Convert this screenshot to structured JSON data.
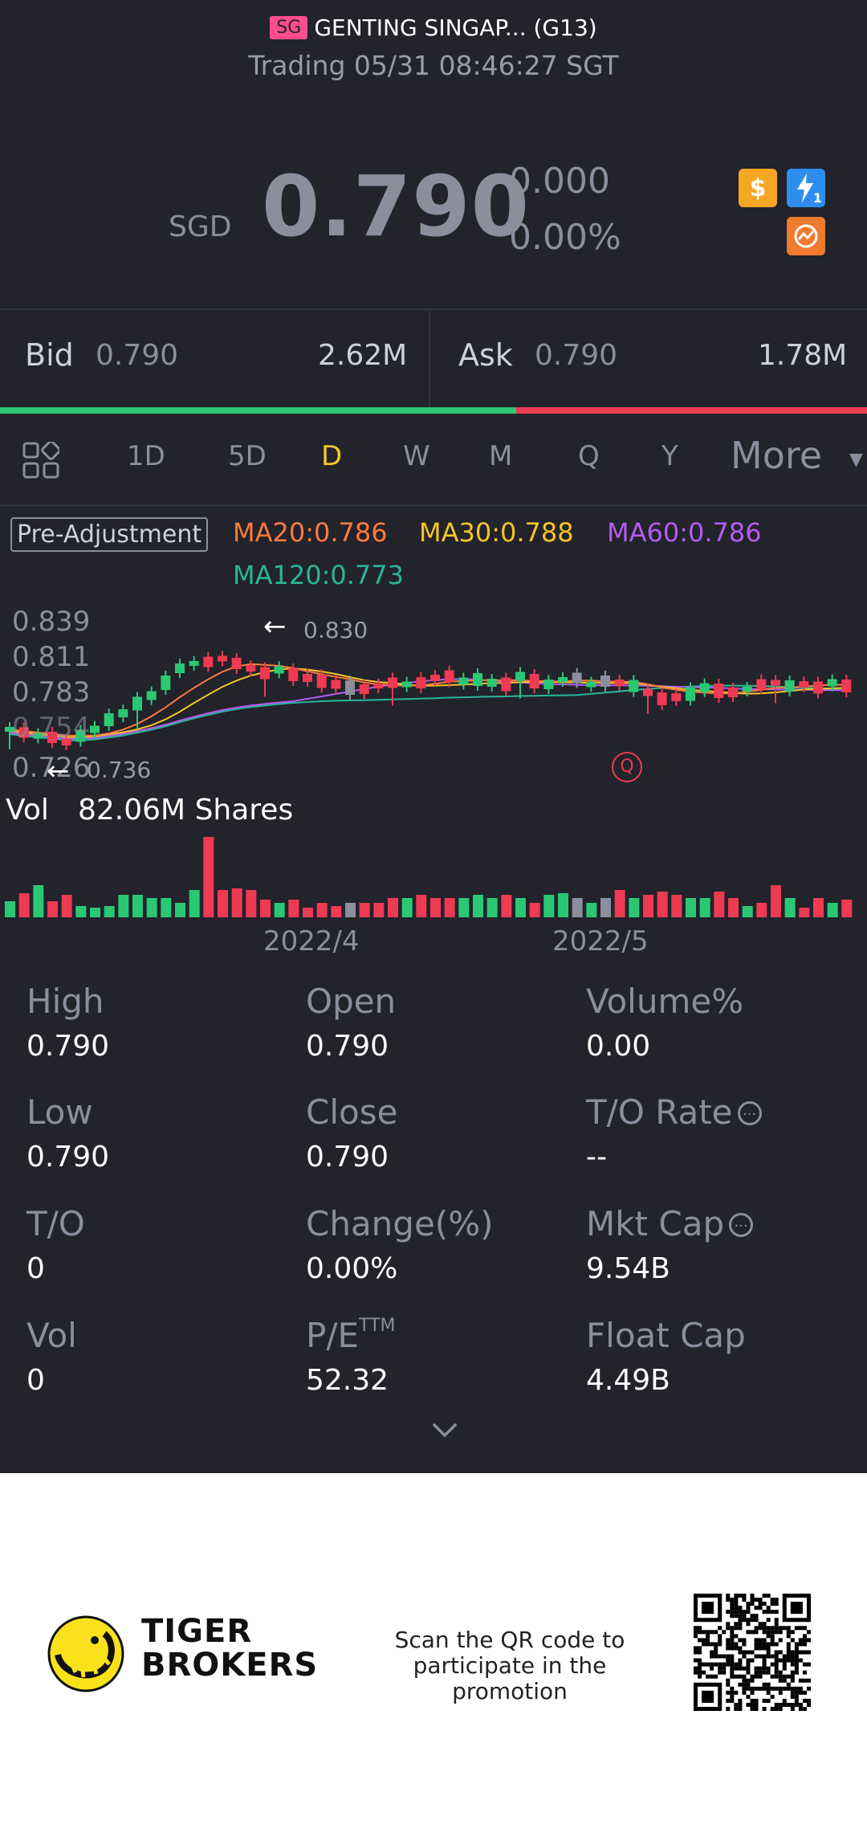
{
  "header": {
    "market_badge": "SG",
    "title": "GENTING SINGAP... (G13)",
    "status": "Trading 05/31 08:46:27 SGT"
  },
  "quote": {
    "currency": "SGD",
    "price": "0.790",
    "change": "0.000",
    "change_pct": "0.00%",
    "icons": [
      "dollar-icon",
      "flash-icon",
      "options-icon"
    ],
    "flash_badge": "1"
  },
  "book": {
    "bid_label": "Bid",
    "bid_price": "0.790",
    "bid_size": "2.62M",
    "ask_label": "Ask",
    "ask_price": "0.790",
    "ask_size": "1.78M",
    "bid_share": 0.595
  },
  "tabs": {
    "items": [
      "1D",
      "5D",
      "D",
      "W",
      "M",
      "Q",
      "Y"
    ],
    "active": "D",
    "more": "More"
  },
  "chart": {
    "adjust_label": "Pre-Adjustment",
    "ma20": "MA20:0.786",
    "ma30": "MA30:0.788",
    "ma60": "MA60:0.786",
    "ma120": "MA120:0.773",
    "y_ticks": [
      "0.839",
      "0.811",
      "0.783",
      "0.754",
      "0.726"
    ],
    "high_marker": "0.830",
    "low_marker": "0.736",
    "event_marker": "Q",
    "vol_label": "Vol",
    "vol_value": "82.06M Shares",
    "x_ticks": [
      "2022/4",
      "2022/5"
    ],
    "colors": {
      "up": "#2bc874",
      "down": "#ee3a52",
      "flat": "#8b8e9c",
      "ma20": "#ff7a3d",
      "ma30": "#f5c427",
      "ma60": "#b45cf0",
      "ma120": "#2ab59a"
    }
  },
  "stats": {
    "high_label": "High",
    "high": "0.790",
    "open_label": "Open",
    "open": "0.790",
    "volpct_label": "Volume%",
    "volpct": "0.00",
    "low_label": "Low",
    "low": "0.790",
    "close_label": "Close",
    "close": "0.790",
    "torate_label": "T/O Rate",
    "torate": "--",
    "to_label": "T/O",
    "to": "0",
    "changepct_label": "Change(%)",
    "changepct": "0.00%",
    "mktcap_label": "Mkt Cap",
    "mktcap": "9.54B",
    "vol_label": "Vol",
    "vol": "0",
    "pe_label": "P/E",
    "pe_sup": "TTM",
    "pe": "52.32",
    "floatcap_label": "Float Cap",
    "floatcap": "4.49B"
  },
  "footer": {
    "brand_line1": "TIGER",
    "brand_line2": "BROKERS",
    "promo_line1": "Scan the QR code to",
    "promo_line2": "participate in the promotion"
  }
}
